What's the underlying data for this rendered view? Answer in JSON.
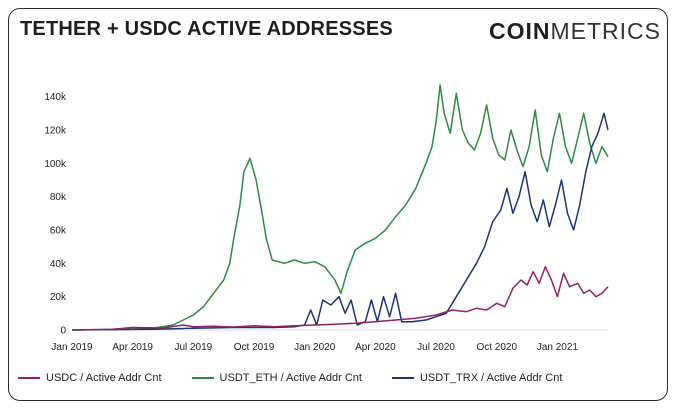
{
  "header": {
    "title": "TETHER + USDC ACTIVE ADDRESSES",
    "logo_bold": "COIN",
    "logo_light": "METRICS"
  },
  "chart_data": {
    "type": "line",
    "title": "TETHER + USDC ACTIVE ADDRESSES",
    "xlabel": "",
    "ylabel": "",
    "ylim": [
      0,
      150000
    ],
    "xlim": [
      0,
      26.5
    ],
    "grid": false,
    "legend_position": "bottom",
    "yticks": [
      {
        "v": 0,
        "label": "0"
      },
      {
        "v": 20000,
        "label": "20k"
      },
      {
        "v": 40000,
        "label": "40k"
      },
      {
        "v": 60000,
        "label": "60k"
      },
      {
        "v": 80000,
        "label": "80k"
      },
      {
        "v": 100000,
        "label": "100k"
      },
      {
        "v": 120000,
        "label": "120k"
      },
      {
        "v": 140000,
        "label": "140k"
      }
    ],
    "xticks": [
      {
        "v": 0,
        "label": "Jan 2019"
      },
      {
        "v": 3,
        "label": "Apr 2019"
      },
      {
        "v": 6,
        "label": "Jul 2019"
      },
      {
        "v": 9,
        "label": "Oct 2019"
      },
      {
        "v": 12,
        "label": "Jan 2020"
      },
      {
        "v": 15,
        "label": "Apr 2020"
      },
      {
        "v": 18,
        "label": "Jul 2020"
      },
      {
        "v": 21,
        "label": "Oct 2020"
      },
      {
        "v": 24,
        "label": "Jan 2021"
      }
    ],
    "series": [
      {
        "name": "USDC / Active Addr Cnt",
        "color": "#8e2466",
        "points": [
          [
            0,
            0
          ],
          [
            2,
            500
          ],
          [
            3,
            1500
          ],
          [
            4.5,
            1200
          ],
          [
            5.5,
            3000
          ],
          [
            6,
            2000
          ],
          [
            7,
            2200
          ],
          [
            8,
            1800
          ],
          [
            9,
            2500
          ],
          [
            10,
            2000
          ],
          [
            11,
            2500
          ],
          [
            12,
            3000
          ],
          [
            13,
            3500
          ],
          [
            14,
            4000
          ],
          [
            15,
            5000
          ],
          [
            16,
            6000
          ],
          [
            17,
            7000
          ],
          [
            18,
            9000
          ],
          [
            18.8,
            12000
          ],
          [
            19.5,
            11000
          ],
          [
            20,
            13000
          ],
          [
            20.5,
            12000
          ],
          [
            21,
            16000
          ],
          [
            21.4,
            14000
          ],
          [
            21.8,
            25000
          ],
          [
            22.2,
            30000
          ],
          [
            22.5,
            27000
          ],
          [
            22.8,
            35000
          ],
          [
            23.1,
            28000
          ],
          [
            23.4,
            38000
          ],
          [
            23.7,
            30000
          ],
          [
            24,
            20000
          ],
          [
            24.3,
            34000
          ],
          [
            24.6,
            26000
          ],
          [
            25,
            28000
          ],
          [
            25.3,
            22000
          ],
          [
            25.6,
            24000
          ],
          [
            25.9,
            20000
          ],
          [
            26.2,
            22000
          ],
          [
            26.5,
            26000
          ]
        ]
      },
      {
        "name": "USDT_ETH / Active Addr Cnt",
        "color": "#2e8b45",
        "points": [
          [
            0,
            0
          ],
          [
            3,
            500
          ],
          [
            4,
            1000
          ],
          [
            5,
            3000
          ],
          [
            5.5,
            6000
          ],
          [
            6,
            9000
          ],
          [
            6.5,
            14000
          ],
          [
            7,
            22000
          ],
          [
            7.5,
            30000
          ],
          [
            7.8,
            40000
          ],
          [
            8,
            55000
          ],
          [
            8.3,
            75000
          ],
          [
            8.5,
            95000
          ],
          [
            8.8,
            103000
          ],
          [
            9.1,
            90000
          ],
          [
            9.4,
            70000
          ],
          [
            9.6,
            55000
          ],
          [
            9.9,
            42000
          ],
          [
            10.5,
            40000
          ],
          [
            11,
            42000
          ],
          [
            11.5,
            40000
          ],
          [
            12,
            41000
          ],
          [
            12.5,
            38000
          ],
          [
            13,
            30000
          ],
          [
            13.3,
            22000
          ],
          [
            13.6,
            35000
          ],
          [
            14,
            48000
          ],
          [
            14.5,
            52000
          ],
          [
            15,
            55000
          ],
          [
            15.5,
            60000
          ],
          [
            16,
            68000
          ],
          [
            16.5,
            75000
          ],
          [
            17,
            85000
          ],
          [
            17.5,
            100000
          ],
          [
            17.8,
            110000
          ],
          [
            18,
            125000
          ],
          [
            18.2,
            147000
          ],
          [
            18.4,
            130000
          ],
          [
            18.7,
            118000
          ],
          [
            19,
            142000
          ],
          [
            19.3,
            120000
          ],
          [
            19.6,
            112000
          ],
          [
            19.9,
            108000
          ],
          [
            20.2,
            118000
          ],
          [
            20.5,
            135000
          ],
          [
            20.8,
            115000
          ],
          [
            21.1,
            105000
          ],
          [
            21.4,
            102000
          ],
          [
            21.7,
            120000
          ],
          [
            22,
            108000
          ],
          [
            22.3,
            98000
          ],
          [
            22.6,
            110000
          ],
          [
            22.9,
            132000
          ],
          [
            23.2,
            105000
          ],
          [
            23.5,
            95000
          ],
          [
            23.8,
            115000
          ],
          [
            24.1,
            130000
          ],
          [
            24.4,
            110000
          ],
          [
            24.7,
            100000
          ],
          [
            25,
            115000
          ],
          [
            25.3,
            130000
          ],
          [
            25.6,
            112000
          ],
          [
            25.9,
            100000
          ],
          [
            26.2,
            110000
          ],
          [
            26.5,
            104000
          ]
        ]
      },
      {
        "name": "USDT_TRX / Active Addr Cnt",
        "color": "#1e3474",
        "points": [
          [
            0,
            0
          ],
          [
            4,
            500
          ],
          [
            6,
            1000
          ],
          [
            8,
            1500
          ],
          [
            10,
            1500
          ],
          [
            11,
            2000
          ],
          [
            11.5,
            3000
          ],
          [
            11.8,
            12000
          ],
          [
            12.1,
            3000
          ],
          [
            12.4,
            18000
          ],
          [
            12.8,
            15000
          ],
          [
            13.2,
            20000
          ],
          [
            13.5,
            10000
          ],
          [
            13.8,
            18000
          ],
          [
            14.1,
            3000
          ],
          [
            14.5,
            5000
          ],
          [
            14.8,
            18000
          ],
          [
            15.1,
            5000
          ],
          [
            15.4,
            20000
          ],
          [
            15.7,
            8000
          ],
          [
            16,
            22000
          ],
          [
            16.3,
            5000
          ],
          [
            16.8,
            5000
          ],
          [
            17.5,
            6000
          ],
          [
            18,
            8000
          ],
          [
            18.5,
            10000
          ],
          [
            19,
            20000
          ],
          [
            19.5,
            30000
          ],
          [
            20,
            40000
          ],
          [
            20.4,
            50000
          ],
          [
            20.8,
            65000
          ],
          [
            21.2,
            72000
          ],
          [
            21.5,
            85000
          ],
          [
            21.8,
            70000
          ],
          [
            22.1,
            80000
          ],
          [
            22.4,
            95000
          ],
          [
            22.7,
            75000
          ],
          [
            23,
            65000
          ],
          [
            23.3,
            78000
          ],
          [
            23.6,
            62000
          ],
          [
            23.9,
            75000
          ],
          [
            24.2,
            90000
          ],
          [
            24.5,
            70000
          ],
          [
            24.8,
            60000
          ],
          [
            25.1,
            75000
          ],
          [
            25.4,
            95000
          ],
          [
            25.7,
            110000
          ],
          [
            26,
            118000
          ],
          [
            26.3,
            130000
          ],
          [
            26.5,
            120000
          ]
        ]
      }
    ]
  }
}
